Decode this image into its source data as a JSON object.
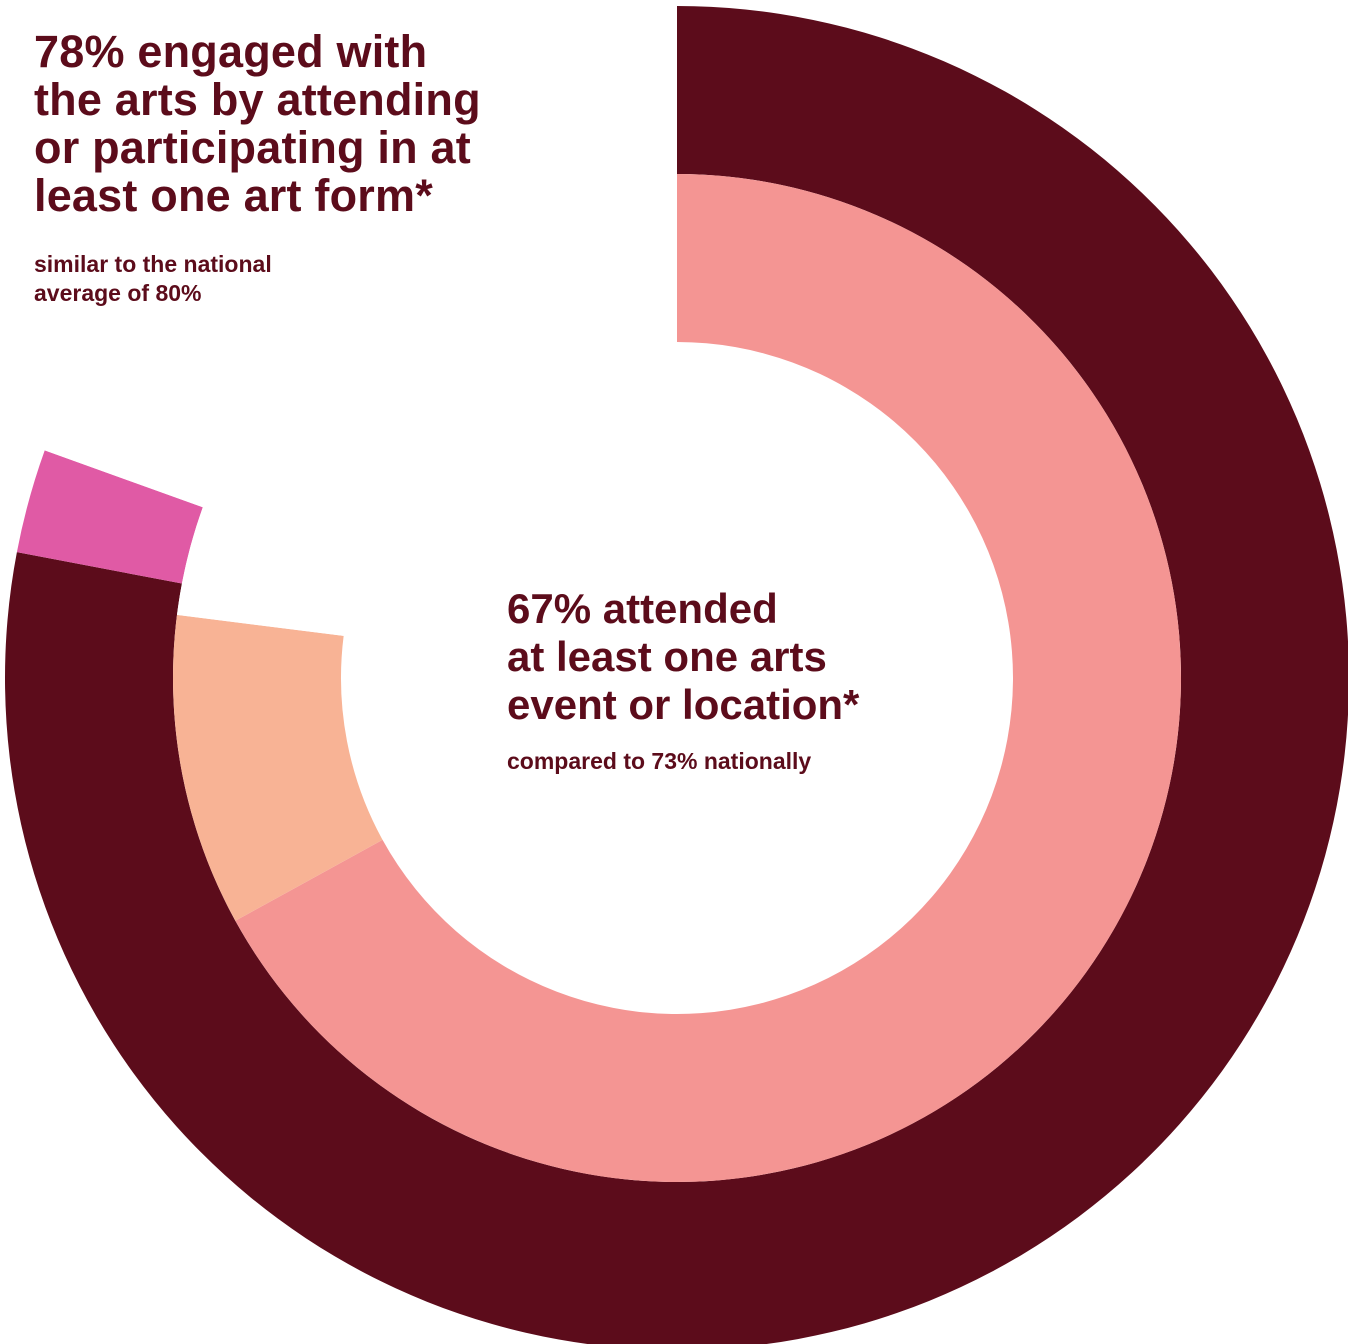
{
  "chart_data": {
    "type": "pie",
    "subtype": "nested-donut",
    "rings": [
      {
        "name": "",
        "start_angle_deg": 0,
        "slices": [
          {
            "label": "",
            "value": 78,
            "color": "#5c0c1b"
          },
          {
            "label": "",
            "value": 2.5,
            "color": "#e05aa5"
          },
          {
            "label": "",
            "value": 19.5,
            "color": "#ffffff"
          }
        ]
      },
      {
        "name": "",
        "start_angle_deg": 0,
        "slices": [
          {
            "label": "",
            "value": 67,
            "color": "#f49593"
          },
          {
            "label": "",
            "value": 10,
            "color": "#f8b395"
          },
          {
            "label": "",
            "value": 23,
            "color": "#ffffff"
          }
        ]
      }
    ],
    "annotations": {
      "outer_title_lines": [
        "78% engaged with",
        "the arts by attending",
        "or participating in at",
        "least one art form*"
      ],
      "outer_subtitle_lines": [
        "similar to the national",
        "average of 80%"
      ],
      "inner_title_lines": [
        "67% attended",
        "at least one arts",
        "event or location*"
      ],
      "inner_subtitle_lines": [
        "compared to 73% nationally"
      ]
    }
  }
}
